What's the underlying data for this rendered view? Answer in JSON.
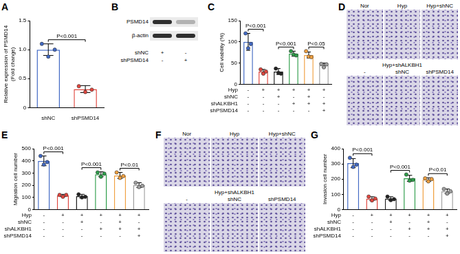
{
  "chart_data": [
    {
      "panel": "A",
      "type": "bar",
      "y_label": [
        "Relative expression of PSMD14",
        "(Fold change)"
      ],
      "categories": [
        "shNC",
        "shPSMD14"
      ],
      "values": [
        1.0,
        0.32
      ],
      "errors": [
        0.1,
        0.06
      ],
      "points": [
        [
          1.1,
          0.88,
          1.0
        ],
        [
          0.37,
          0.27,
          0.31
        ]
      ],
      "colors": [
        "#4169c4",
        "#e0463e"
      ],
      "ylim": [
        0,
        1.5
      ],
      "yticks": [
        0,
        0.5,
        {
          "value": 1,
          "label": "1.0"
        },
        1.5
      ],
      "significance": [
        {
          "pair": [
            0,
            1
          ],
          "label": "P<0.001"
        }
      ]
    },
    {
      "panel": "C",
      "type": "bar",
      "y_label": "Cell viability (%)",
      "categories": [
        null,
        null,
        null,
        null,
        null,
        null
      ],
      "values": [
        100,
        30,
        30,
        72,
        69,
        45
      ],
      "errors": [
        20,
        5,
        7,
        6,
        7,
        5
      ],
      "points": [
        [
          120,
          85,
          95
        ],
        [
          35,
          25,
          30
        ],
        [
          37,
          27,
          25
        ],
        [
          78,
          70,
          68
        ],
        [
          78,
          65,
          64
        ],
        [
          48,
          40,
          47
        ]
      ],
      "colors": [
        "#4169c4",
        "#e0463e",
        "#222222",
        "#2e9e4a",
        "#f0a040",
        "#a0a0a0"
      ],
      "ylim": [
        0,
        150
      ],
      "yticks": [
        0,
        50,
        100,
        150
      ],
      "sign_table": [
        {
          "label": "Hyp",
          "signs": [
            "-",
            "+",
            "+",
            "+",
            "+",
            "+"
          ]
        },
        {
          "label": "shNC",
          "signs": [
            "-",
            "-",
            "+",
            "-",
            "+",
            "-"
          ]
        },
        {
          "label": "shALKBH1",
          "signs": [
            "-",
            "-",
            "-",
            "+",
            "+",
            "+"
          ]
        },
        {
          "label": "shPSMD14",
          "signs": [
            "-",
            "-",
            "-",
            "-",
            "-",
            "+"
          ]
        }
      ],
      "significance": [
        {
          "pair": [
            0,
            1
          ],
          "label": "P<0.001"
        },
        {
          "pair": [
            2,
            3
          ],
          "label": "P<0.001"
        },
        {
          "pair": [
            4,
            5
          ],
          "label": "P<0.05"
        }
      ]
    },
    {
      "panel": "E",
      "type": "bar",
      "y_label": "Migration cell number",
      "categories": [
        null,
        null,
        null,
        null,
        null,
        null
      ],
      "values": [
        400,
        115,
        110,
        290,
        280,
        200
      ],
      "errors": [
        40,
        10,
        15,
        20,
        25,
        20
      ],
      "points": [
        [
          440,
          370,
          390
        ],
        [
          120,
          105,
          120
        ],
        [
          125,
          100,
          105
        ],
        [
          305,
          270,
          295
        ],
        [
          305,
          260,
          275
        ],
        [
          220,
          185,
          195
        ]
      ],
      "colors": [
        "#4169c4",
        "#e0463e",
        "#222222",
        "#2e9e4a",
        "#f0a040",
        "#a0a0a0"
      ],
      "ylim": [
        0,
        500
      ],
      "yticks": [
        0,
        100,
        200,
        300,
        400,
        500
      ],
      "sign_table": [
        {
          "label": "Hyp",
          "signs": [
            "-",
            "+",
            "+",
            "+",
            "+",
            "+"
          ]
        },
        {
          "label": "shNC",
          "signs": [
            "-",
            "-",
            "+",
            "-",
            "+",
            "-"
          ]
        },
        {
          "label": "shALKBH1",
          "signs": [
            "-",
            "-",
            "-",
            "+",
            "+",
            "+"
          ]
        },
        {
          "label": "shPSMD14",
          "signs": [
            "-",
            "-",
            "-",
            "-",
            "-",
            "+"
          ]
        }
      ],
      "significance": [
        {
          "pair": [
            0,
            1
          ],
          "label": "P<0.001"
        },
        {
          "pair": [
            2,
            3
          ],
          "label": "P<0.001"
        },
        {
          "pair": [
            4,
            5
          ],
          "label": "P<0.01"
        }
      ]
    },
    {
      "panel": "G",
      "type": "bar",
      "y_label": "Invasion cell number",
      "categories": [
        null,
        null,
        null,
        null,
        null,
        null
      ],
      "values": [
        305,
        72,
        72,
        205,
        197,
        120
      ],
      "errors": [
        30,
        12,
        12,
        20,
        12,
        15
      ],
      "points": [
        [
          340,
          280,
          295
        ],
        [
          85,
          60,
          72
        ],
        [
          85,
          62,
          68
        ],
        [
          230,
          190,
          195
        ],
        [
          205,
          185,
          200
        ],
        [
          135,
          105,
          120
        ]
      ],
      "colors": [
        "#4169c4",
        "#e0463e",
        "#222222",
        "#2e9e4a",
        "#f0a040",
        "#a0a0a0"
      ],
      "ylim": [
        0,
        400
      ],
      "yticks": [
        0,
        100,
        200,
        300,
        400
      ],
      "sign_table": [
        {
          "label": "Hyp",
          "signs": [
            "-",
            "+",
            "+",
            "+",
            "+",
            "+"
          ]
        },
        {
          "label": "shNC",
          "signs": [
            "-",
            "-",
            "+",
            "-",
            "+",
            "-"
          ]
        },
        {
          "label": "shALKBH1",
          "signs": [
            "-",
            "-",
            "-",
            "+",
            "+",
            "+"
          ]
        },
        {
          "label": "shPSMD14",
          "signs": [
            "-",
            "-",
            "-",
            "-",
            "-",
            "+"
          ]
        }
      ],
      "significance": [
        {
          "pair": [
            0,
            1
          ],
          "label": "P<0.001"
        },
        {
          "pair": [
            2,
            3
          ],
          "label": "P<0.001"
        },
        {
          "pair": [
            4,
            5
          ],
          "label": "P<0.01"
        }
      ]
    }
  ],
  "blot": {
    "panel": "B",
    "rows": [
      {
        "label": "PSMD14",
        "intensity": [
          1,
          0.3
        ]
      },
      {
        "label": "β-actin",
        "intensity": [
          1,
          1
        ]
      }
    ],
    "conditions": [
      {
        "label": "shNC",
        "signs": [
          "+",
          "-"
        ]
      },
      {
        "label": "shPSMD14",
        "signs": [
          "-",
          "+"
        ]
      }
    ]
  },
  "images": [
    {
      "panel": "D",
      "rows": [
        {
          "tiles": [
            "Nor",
            "Hyp",
            "Hyp+shNC"
          ]
        },
        {
          "group": "Hyp+shALKBH1",
          "tiles": [
            "-",
            "shNC",
            "shPSMD14"
          ]
        }
      ]
    },
    {
      "panel": "F",
      "rows": [
        {
          "tiles": [
            "Nor",
            "Hyp",
            "Hyp+shNC"
          ]
        },
        {
          "group": "Hyp+shALKBH1",
          "tiles": [
            "-",
            "shNC",
            "shPSMD14"
          ]
        }
      ]
    }
  ]
}
